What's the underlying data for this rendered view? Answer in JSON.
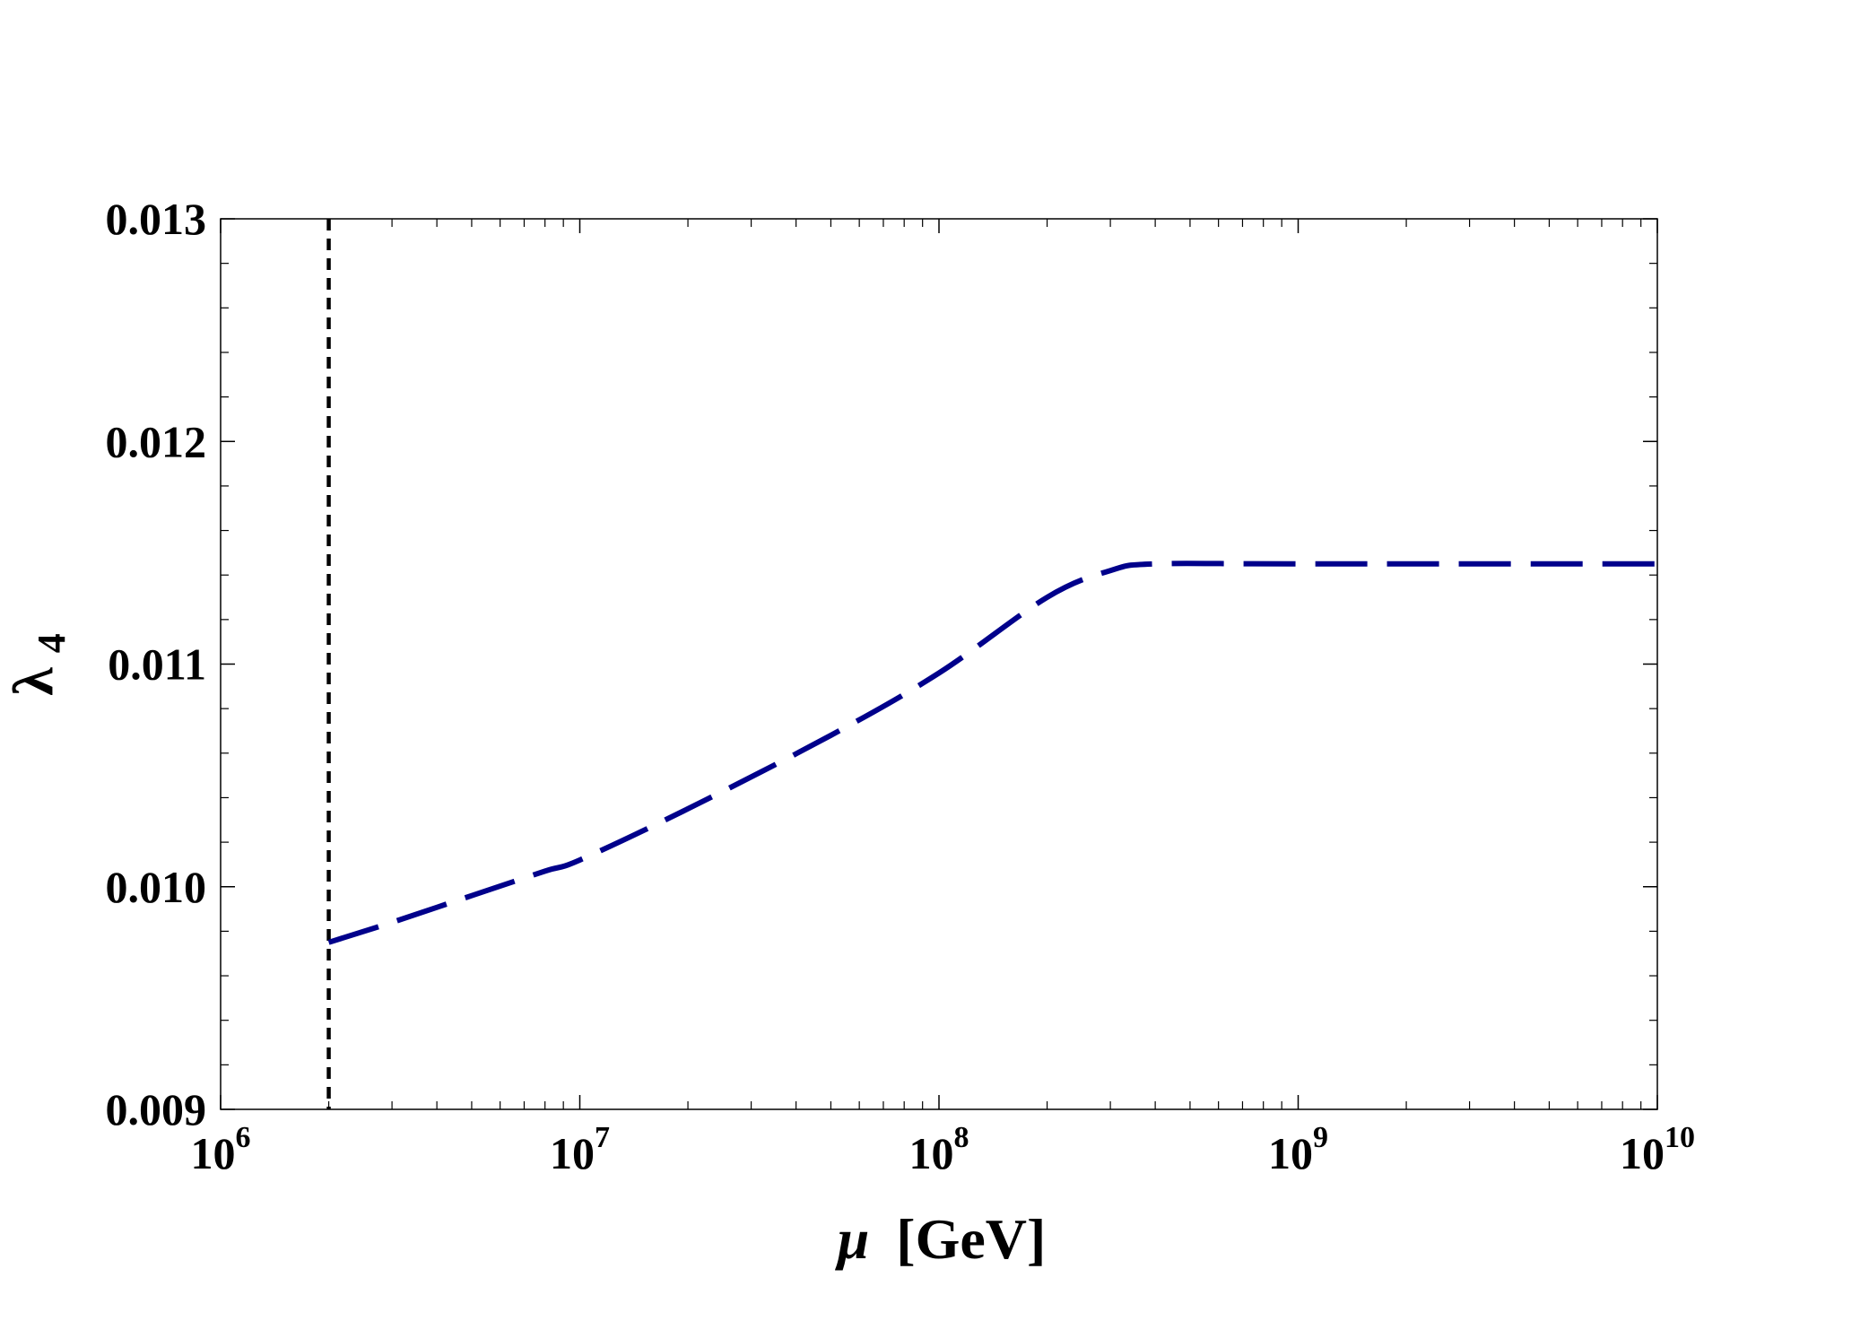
{
  "chart_data": {
    "type": "line",
    "xscale": "log",
    "xlim": [
      1000000,
      10000000000
    ],
    "ylim": [
      0.009,
      0.013
    ],
    "xlabel_symbol": "μ",
    "xlabel_unit": "[GeV]",
    "ylabel_symbol": "λ",
    "ylabel_subscript": "4",
    "grid": false,
    "x_ticks": [
      {
        "value": 1000000,
        "base": "10",
        "exp": "6"
      },
      {
        "value": 10000000,
        "base": "10",
        "exp": "7"
      },
      {
        "value": 100000000,
        "base": "10",
        "exp": "8"
      },
      {
        "value": 1000000000,
        "base": "10",
        "exp": "9"
      },
      {
        "value": 10000000000,
        "base": "10",
        "exp": "10"
      }
    ],
    "y_ticks": [
      {
        "value": 0.009,
        "label": "0.009"
      },
      {
        "value": 0.01,
        "label": "0.010"
      },
      {
        "value": 0.011,
        "label": "0.011"
      },
      {
        "value": 0.012,
        "label": "0.012"
      },
      {
        "value": 0.013,
        "label": "0.013"
      }
    ],
    "series": [
      {
        "style": "dashed",
        "color": "#00008b",
        "points": [
          [
            2000000,
            0.00975
          ],
          [
            3000000,
            0.00984
          ],
          [
            5000000,
            0.00996
          ],
          [
            8000000,
            0.01007
          ],
          [
            10000000,
            0.01012
          ],
          [
            20000000,
            0.01035
          ],
          [
            50000000,
            0.01068
          ],
          [
            100000000,
            0.01096
          ],
          [
            200000000,
            0.0113
          ],
          [
            300000000,
            0.01142
          ],
          [
            400000000,
            0.01145
          ],
          [
            1000000000,
            0.01145
          ],
          [
            10000000000,
            0.01145
          ]
        ]
      }
    ],
    "reference_lines": [
      {
        "orientation": "vertical",
        "x": 2000000,
        "style": "dashed",
        "color": "#000000"
      }
    ]
  }
}
